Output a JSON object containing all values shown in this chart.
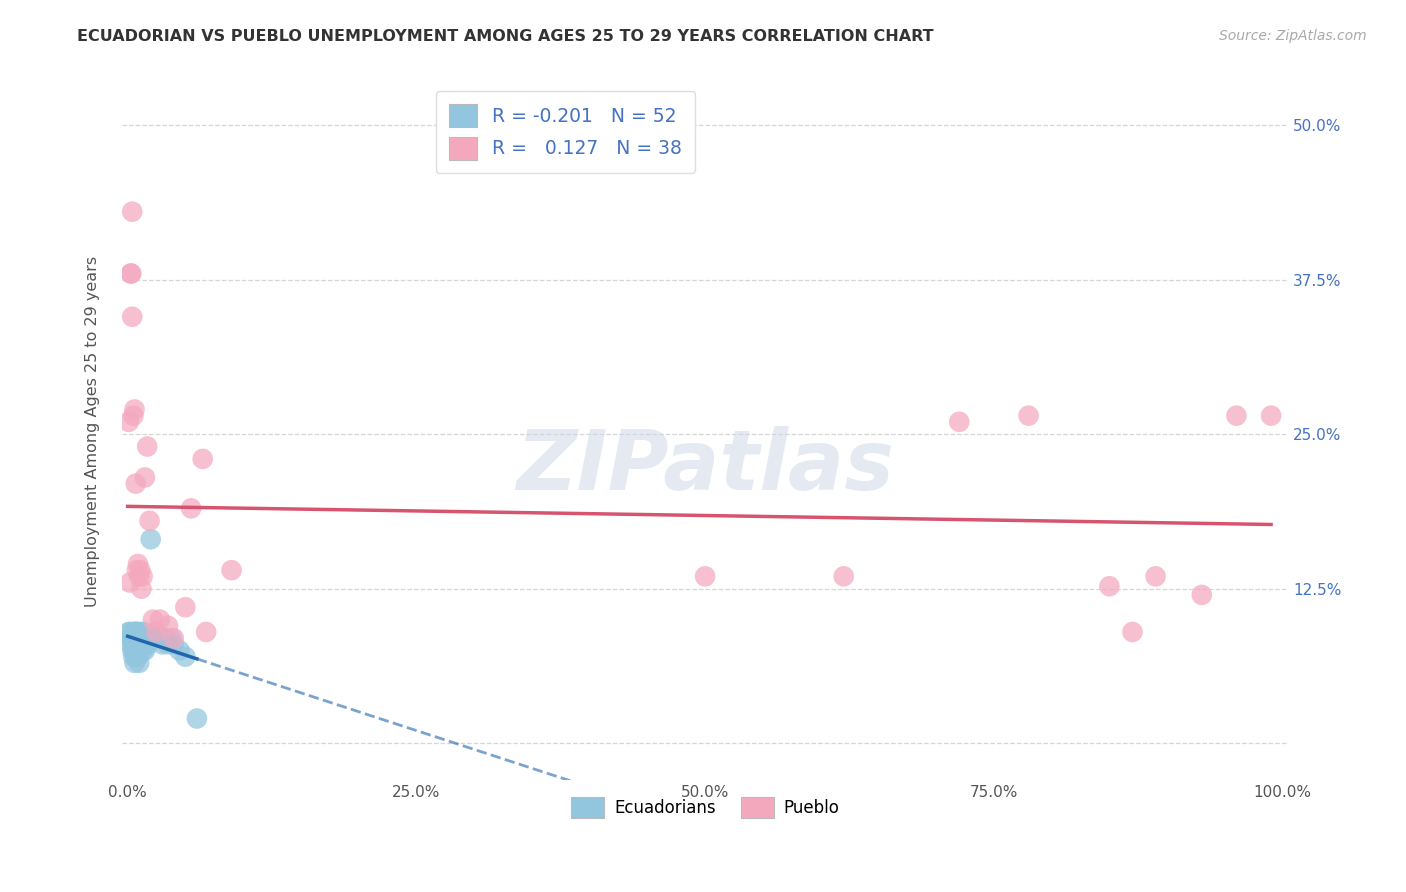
{
  "title": "ECUADORIAN VS PUEBLO UNEMPLOYMENT AMONG AGES 25 TO 29 YEARS CORRELATION CHART",
  "source": "Source: ZipAtlas.com",
  "ylabel": "Unemployment Among Ages 25 to 29 years",
  "xlim": [
    -0.005,
    1.005
  ],
  "ylim": [
    -0.03,
    0.535
  ],
  "xticks": [
    0.0,
    0.25,
    0.5,
    0.75,
    1.0
  ],
  "xticklabels": [
    "0.0%",
    "25.0%",
    "50.0%",
    "75.0%",
    "100.0%"
  ],
  "yticks": [
    0.0,
    0.125,
    0.25,
    0.375,
    0.5
  ],
  "yticklabels": [
    "",
    "12.5%",
    "25.0%",
    "37.5%",
    "50.0%"
  ],
  "legend_r_ecuadorian": "-0.201",
  "legend_n_ecuadorian": "52",
  "legend_r_pueblo": "0.127",
  "legend_n_pueblo": "38",
  "ecuadorian_color": "#92c5de",
  "pueblo_color": "#f4a8be",
  "ecuadorian_line_color": "#2166ac",
  "pueblo_line_color": "#d6546e",
  "watermark_text": "ZIPatlas",
  "ecuadorian_x": [
    0.001,
    0.002,
    0.002,
    0.003,
    0.003,
    0.004,
    0.004,
    0.005,
    0.005,
    0.005,
    0.006,
    0.006,
    0.006,
    0.006,
    0.007,
    0.007,
    0.007,
    0.007,
    0.008,
    0.008,
    0.008,
    0.009,
    0.009,
    0.009,
    0.01,
    0.01,
    0.01,
    0.011,
    0.011,
    0.012,
    0.013,
    0.013,
    0.014,
    0.015,
    0.015,
    0.016,
    0.017,
    0.018,
    0.019,
    0.02,
    0.022,
    0.024,
    0.025,
    0.027,
    0.03,
    0.032,
    0.035,
    0.038,
    0.04,
    0.045,
    0.05,
    0.06
  ],
  "ecuadorian_y": [
    0.09,
    0.085,
    0.09,
    0.08,
    0.085,
    0.075,
    0.085,
    0.07,
    0.08,
    0.09,
    0.065,
    0.075,
    0.085,
    0.09,
    0.07,
    0.08,
    0.085,
    0.09,
    0.075,
    0.08,
    0.09,
    0.07,
    0.08,
    0.09,
    0.065,
    0.075,
    0.085,
    0.08,
    0.085,
    0.09,
    0.075,
    0.085,
    0.09,
    0.075,
    0.085,
    0.08,
    0.085,
    0.08,
    0.085,
    0.165,
    0.085,
    0.09,
    0.085,
    0.085,
    0.08,
    0.085,
    0.08,
    0.085,
    0.08,
    0.075,
    0.07,
    0.02
  ],
  "pueblo_x": [
    0.001,
    0.002,
    0.003,
    0.003,
    0.004,
    0.004,
    0.005,
    0.006,
    0.007,
    0.008,
    0.009,
    0.01,
    0.011,
    0.012,
    0.013,
    0.015,
    0.017,
    0.019,
    0.022,
    0.025,
    0.028,
    0.035,
    0.04,
    0.05,
    0.055,
    0.065,
    0.068,
    0.09,
    0.5,
    0.62,
    0.72,
    0.78,
    0.85,
    0.87,
    0.89,
    0.93,
    0.96,
    0.99
  ],
  "pueblo_y": [
    0.26,
    0.13,
    0.38,
    0.38,
    0.43,
    0.345,
    0.265,
    0.27,
    0.21,
    0.14,
    0.145,
    0.135,
    0.14,
    0.125,
    0.135,
    0.215,
    0.24,
    0.18,
    0.1,
    0.09,
    0.1,
    0.095,
    0.085,
    0.11,
    0.19,
    0.23,
    0.09,
    0.14,
    0.135,
    0.135,
    0.26,
    0.265,
    0.127,
    0.09,
    0.135,
    0.12,
    0.265,
    0.265
  ]
}
